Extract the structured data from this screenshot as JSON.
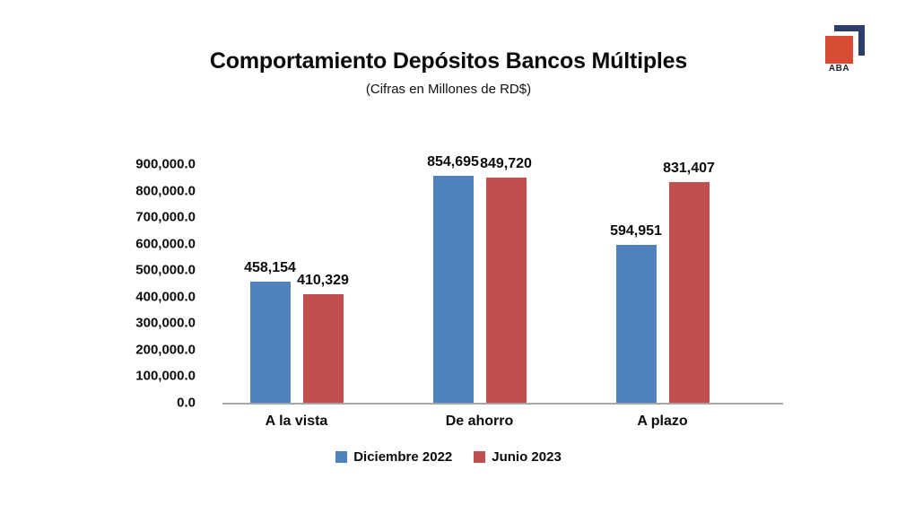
{
  "header": {
    "title": "Comportamiento Depósitos Bancos Múltiples",
    "subtitle": "(Cifras en Millones de RD$)"
  },
  "logo": {
    "text": "ABA",
    "red": "#D74B33",
    "navy": "#2D3E6B"
  },
  "chart_data": {
    "type": "bar",
    "title": "Comportamiento Depósitos Bancos Múltiples",
    "subtitle": "(Cifras en Millones de RD$)",
    "categories": [
      "A la vista",
      "De ahorro",
      "A plazo"
    ],
    "series": [
      {
        "name": "Diciembre 2022",
        "color": "#4F81BD",
        "values": [
          458154,
          854695,
          594951
        ],
        "value_labels": [
          "458,154",
          "854,695",
          "594,951"
        ]
      },
      {
        "name": "Junio 2023",
        "color": "#C0504D",
        "values": [
          410329,
          849720,
          831407
        ],
        "value_labels": [
          "410,329",
          "849,720",
          "831,407"
        ]
      }
    ],
    "ylim": [
      0,
      900000
    ],
    "ytick_step": 100000,
    "ytick_labels": [
      "0.0",
      "100,000.0",
      "200,000.0",
      "300,000.0",
      "400,000.0",
      "500,000.0",
      "600,000.0",
      "700,000.0",
      "800,000.0",
      "900,000.0"
    ],
    "grid": false,
    "legend_position": "bottom",
    "axis_line_color": "#A6A6A6"
  }
}
